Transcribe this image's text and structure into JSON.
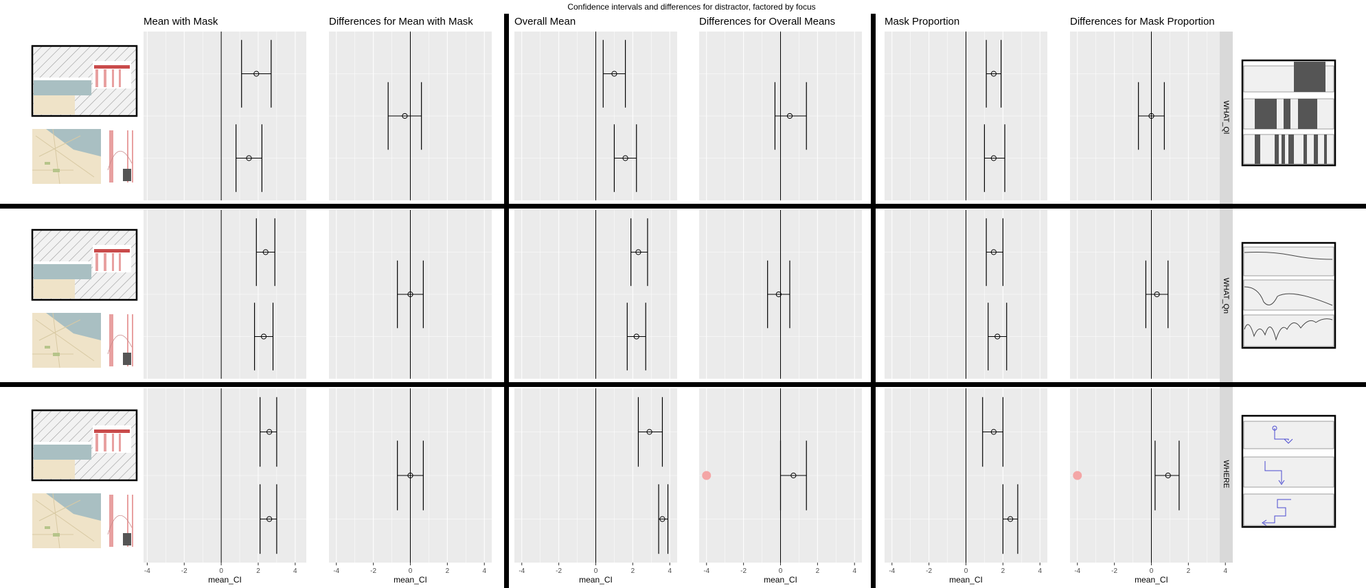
{
  "title": "Confidence intervals and differences for distractor, factored by focus",
  "facet_rows": [
    "WHAT_Ql",
    "WHAT_Qn",
    "WHERE"
  ],
  "colors": {
    "panel_bg": "#ebebeb",
    "grid": "#ffffff",
    "strip_bg": "#d9d9d9",
    "ink": "#000000",
    "highlight": "#f4a6a6"
  },
  "chart_data": [
    {
      "type": "errorbar",
      "title": "Mean with Mask",
      "xlabel": "mean_CI",
      "xlim": [
        -4.2,
        4.6
      ],
      "xticks": [
        -4,
        -2,
        0,
        2,
        4
      ],
      "grid": true,
      "rows": [
        {
          "facet": "WHAT_Ql",
          "points": [
            {
              "slot": 1,
              "mean": 1.9,
              "lo": 1.1,
              "hi": 2.7
            },
            {
              "slot": 3,
              "mean": 1.5,
              "lo": 0.8,
              "hi": 2.2
            }
          ]
        },
        {
          "facet": "WHAT_Qn",
          "points": [
            {
              "slot": 1,
              "mean": 2.4,
              "lo": 1.9,
              "hi": 2.9
            },
            {
              "slot": 3,
              "mean": 2.3,
              "lo": 1.8,
              "hi": 2.8
            }
          ]
        },
        {
          "facet": "WHERE",
          "points": [
            {
              "slot": 1,
              "mean": 2.6,
              "lo": 2.1,
              "hi": 3.0
            },
            {
              "slot": 3,
              "mean": 2.6,
              "lo": 2.1,
              "hi": 3.0
            }
          ]
        }
      ]
    },
    {
      "type": "errorbar",
      "title": "Differences for Mean with Mask",
      "xlabel": "mean_CI",
      "xlim": [
        -4.4,
        4.4
      ],
      "xticks": [
        -4,
        -2,
        0,
        2,
        4
      ],
      "grid": true,
      "rows": [
        {
          "facet": "WHAT_Ql",
          "points": [
            {
              "slot": 2,
              "mean": -0.3,
              "lo": -1.2,
              "hi": 0.6
            }
          ]
        },
        {
          "facet": "WHAT_Qn",
          "points": [
            {
              "slot": 2,
              "mean": 0.0,
              "lo": -0.7,
              "hi": 0.7
            }
          ]
        },
        {
          "facet": "WHERE",
          "points": [
            {
              "slot": 2,
              "mean": 0.0,
              "lo": -0.7,
              "hi": 0.7
            }
          ]
        }
      ]
    },
    {
      "type": "errorbar",
      "title": "Overall Mean",
      "xlabel": "mean_CI",
      "xlim": [
        -4.4,
        4.4
      ],
      "xticks": [
        -4,
        -2,
        0,
        2,
        4
      ],
      "grid": true,
      "rows": [
        {
          "facet": "WHAT_Ql",
          "points": [
            {
              "slot": 1,
              "mean": 1.0,
              "lo": 0.4,
              "hi": 1.6
            },
            {
              "slot": 3,
              "mean": 1.6,
              "lo": 1.0,
              "hi": 2.2
            }
          ]
        },
        {
          "facet": "WHAT_Qn",
          "points": [
            {
              "slot": 1,
              "mean": 2.3,
              "lo": 1.9,
              "hi": 2.8
            },
            {
              "slot": 3,
              "mean": 2.2,
              "lo": 1.7,
              "hi": 2.7
            }
          ]
        },
        {
          "facet": "WHERE",
          "points": [
            {
              "slot": 1,
              "mean": 2.9,
              "lo": 2.3,
              "hi": 3.6
            },
            {
              "slot": 3,
              "mean": 3.6,
              "lo": 3.4,
              "hi": 3.9
            }
          ]
        }
      ]
    },
    {
      "type": "errorbar",
      "title": "Differences for Overall Means",
      "xlabel": "mean_CI",
      "xlim": [
        -4.4,
        4.4
      ],
      "xticks": [
        -4,
        -2,
        0,
        2,
        4
      ],
      "grid": true,
      "rows": [
        {
          "facet": "WHAT_Ql",
          "points": [
            {
              "slot": 2,
              "mean": 0.5,
              "lo": -0.3,
              "hi": 1.4
            }
          ]
        },
        {
          "facet": "WHAT_Qn",
          "points": [
            {
              "slot": 2,
              "mean": -0.1,
              "lo": -0.7,
              "hi": 0.5
            }
          ]
        },
        {
          "facet": "WHERE",
          "points": [
            {
              "slot": 2,
              "mean": 0.7,
              "lo": 0.0,
              "hi": 1.4
            }
          ],
          "highlight": true
        }
      ]
    },
    {
      "type": "errorbar",
      "title": "Mask Proportion",
      "xlabel": "mean_CI",
      "xlim": [
        -4.4,
        4.4
      ],
      "xticks": [
        -4,
        -2,
        0,
        2,
        4
      ],
      "grid": true,
      "rows": [
        {
          "facet": "WHAT_Ql",
          "points": [
            {
              "slot": 1,
              "mean": 1.5,
              "lo": 1.1,
              "hi": 1.9
            },
            {
              "slot": 3,
              "mean": 1.5,
              "lo": 1.0,
              "hi": 2.1
            }
          ]
        },
        {
          "facet": "WHAT_Qn",
          "points": [
            {
              "slot": 1,
              "mean": 1.5,
              "lo": 1.1,
              "hi": 2.0
            },
            {
              "slot": 3,
              "mean": 1.7,
              "lo": 1.2,
              "hi": 2.2
            }
          ]
        },
        {
          "facet": "WHERE",
          "points": [
            {
              "slot": 1,
              "mean": 1.5,
              "lo": 0.9,
              "hi": 2.0
            },
            {
              "slot": 3,
              "mean": 2.4,
              "lo": 2.0,
              "hi": 2.8
            }
          ]
        }
      ]
    },
    {
      "type": "errorbar",
      "title": "Differences for Mask Proportion",
      "xlabel": "mean_CI",
      "xlim": [
        -4.4,
        4.4
      ],
      "xticks": [
        -4,
        -2,
        0,
        2,
        4
      ],
      "grid": true,
      "rows": [
        {
          "facet": "WHAT_Ql",
          "points": [
            {
              "slot": 2,
              "mean": 0.0,
              "lo": -0.7,
              "hi": 0.7
            }
          ]
        },
        {
          "facet": "WHAT_Qn",
          "points": [
            {
              "slot": 2,
              "mean": 0.3,
              "lo": -0.3,
              "hi": 0.9
            }
          ]
        },
        {
          "facet": "WHERE",
          "points": [
            {
              "slot": 2,
              "mean": 0.9,
              "lo": 0.2,
              "hi": 1.5
            }
          ],
          "highlight": true
        }
      ]
    }
  ]
}
